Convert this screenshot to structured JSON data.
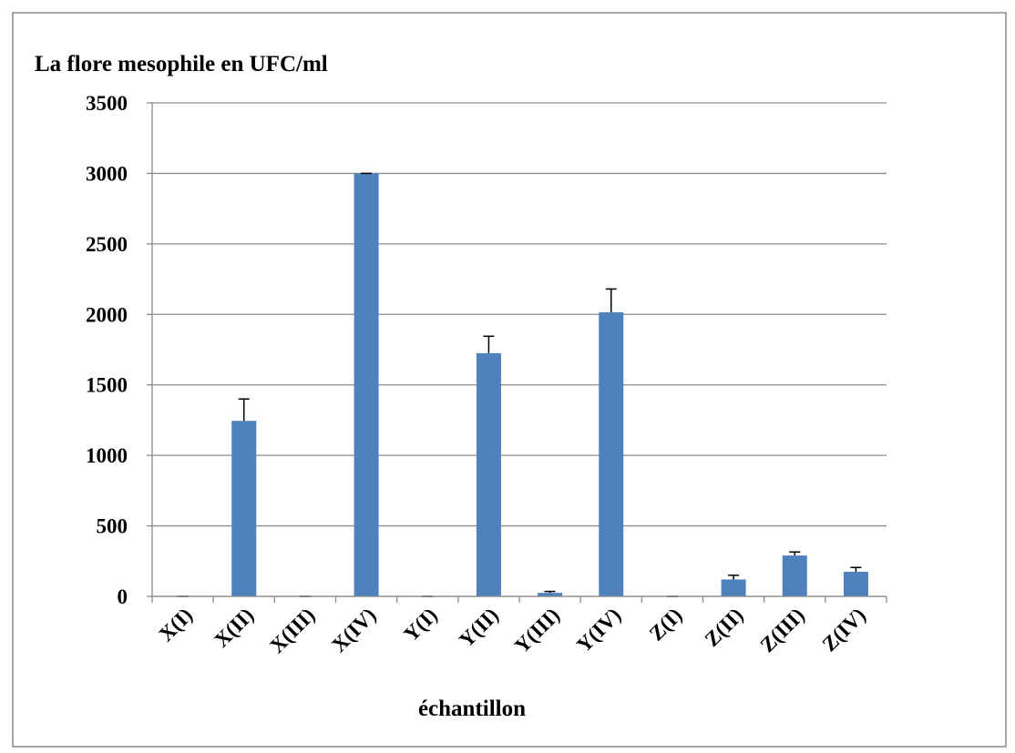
{
  "chart_data": {
    "type": "bar",
    "title": "La flore mesophile en UFC/ml",
    "x_label": "échantillon",
    "categories": [
      "X(I)",
      "X(II)",
      "X(III)",
      "X(IV)",
      "Y(I)",
      "Y(II)",
      "Y(III)",
      "Y(IV)",
      "Z(I)",
      "Z(II)",
      "Z(III)",
      "Z(IV)"
    ],
    "values": [
      0,
      1245,
      0,
      3000,
      0,
      1725,
      25,
      2015,
      0,
      120,
      290,
      175
    ],
    "errors": [
      0,
      155,
      0,
      0,
      0,
      120,
      10,
      165,
      0,
      30,
      25,
      30
    ],
    "color": "#4f81bd",
    "ylim": [
      0,
      3500
    ],
    "yticks": [
      0,
      500,
      1000,
      1500,
      2000,
      2500,
      3000,
      3500
    ],
    "grid": true
  }
}
